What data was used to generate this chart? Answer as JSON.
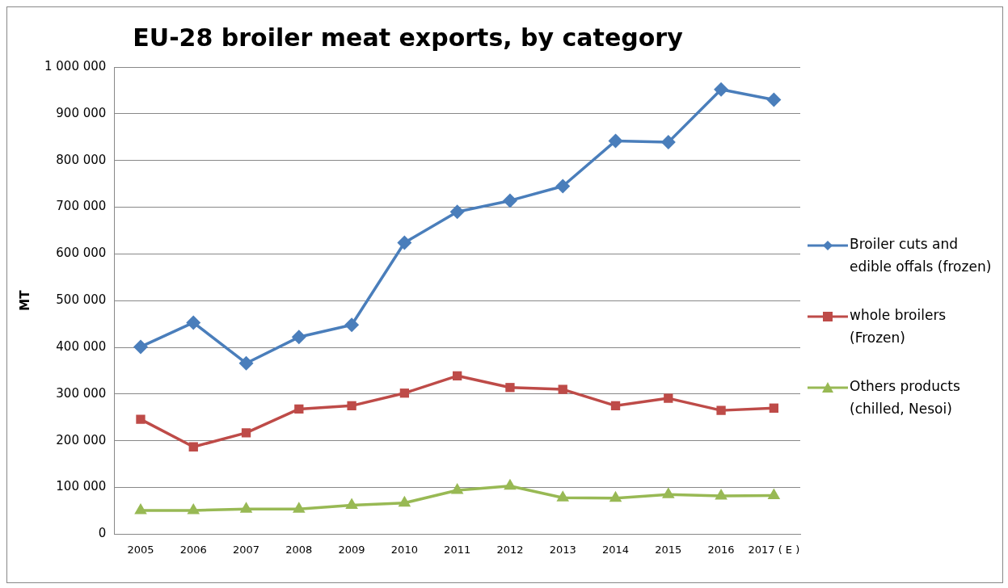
{
  "chart_data": {
    "type": "line",
    "title": "EU-28 broiler meat exports, by category",
    "ylabel": "MT",
    "categories": [
      "2005",
      "2006",
      "2007",
      "2008",
      "2009",
      "2010",
      "2011",
      "2012",
      "2013",
      "2014",
      "2015",
      "2016",
      "2017 ( E )"
    ],
    "series": [
      {
        "name": "Broiler cuts and edible offals (frozen)",
        "color": "#4a7ebb",
        "marker": "diamond",
        "values": [
          401000,
          453000,
          366000,
          422000,
          448000,
          624000,
          690000,
          714000,
          745000,
          842000,
          839000,
          952000,
          930000
        ]
      },
      {
        "name": "whole broilers (Frozen)",
        "color": "#be4b48",
        "marker": "square",
        "values": [
          246000,
          187000,
          217000,
          268000,
          275000,
          302000,
          339000,
          314000,
          310000,
          275000,
          291000,
          265000,
          270000
        ]
      },
      {
        "name": "Others products (chilled, Nesoi)",
        "color": "#98b954",
        "marker": "triangle",
        "values": [
          51000,
          51000,
          54000,
          54000,
          62000,
          67000,
          94000,
          103000,
          78000,
          77000,
          85000,
          82000,
          83000
        ]
      }
    ],
    "ylim": [
      0,
      1000000
    ],
    "yticks": [
      {
        "value": 0,
        "label": "0"
      },
      {
        "value": 100000,
        "label": "100 000"
      },
      {
        "value": 200000,
        "label": "200 000"
      },
      {
        "value": 300000,
        "label": "300 000"
      },
      {
        "value": 400000,
        "label": "400 000"
      },
      {
        "value": 500000,
        "label": "500 000"
      },
      {
        "value": 600000,
        "label": "600 000"
      },
      {
        "value": 700000,
        "label": "700 000"
      },
      {
        "value": 800000,
        "label": "800 000"
      },
      {
        "value": 900000,
        "label": "900 000"
      },
      {
        "value": 1000000,
        "label": "1 000 000"
      }
    ],
    "grid": "y",
    "legend": "right",
    "line_style": "solid"
  }
}
